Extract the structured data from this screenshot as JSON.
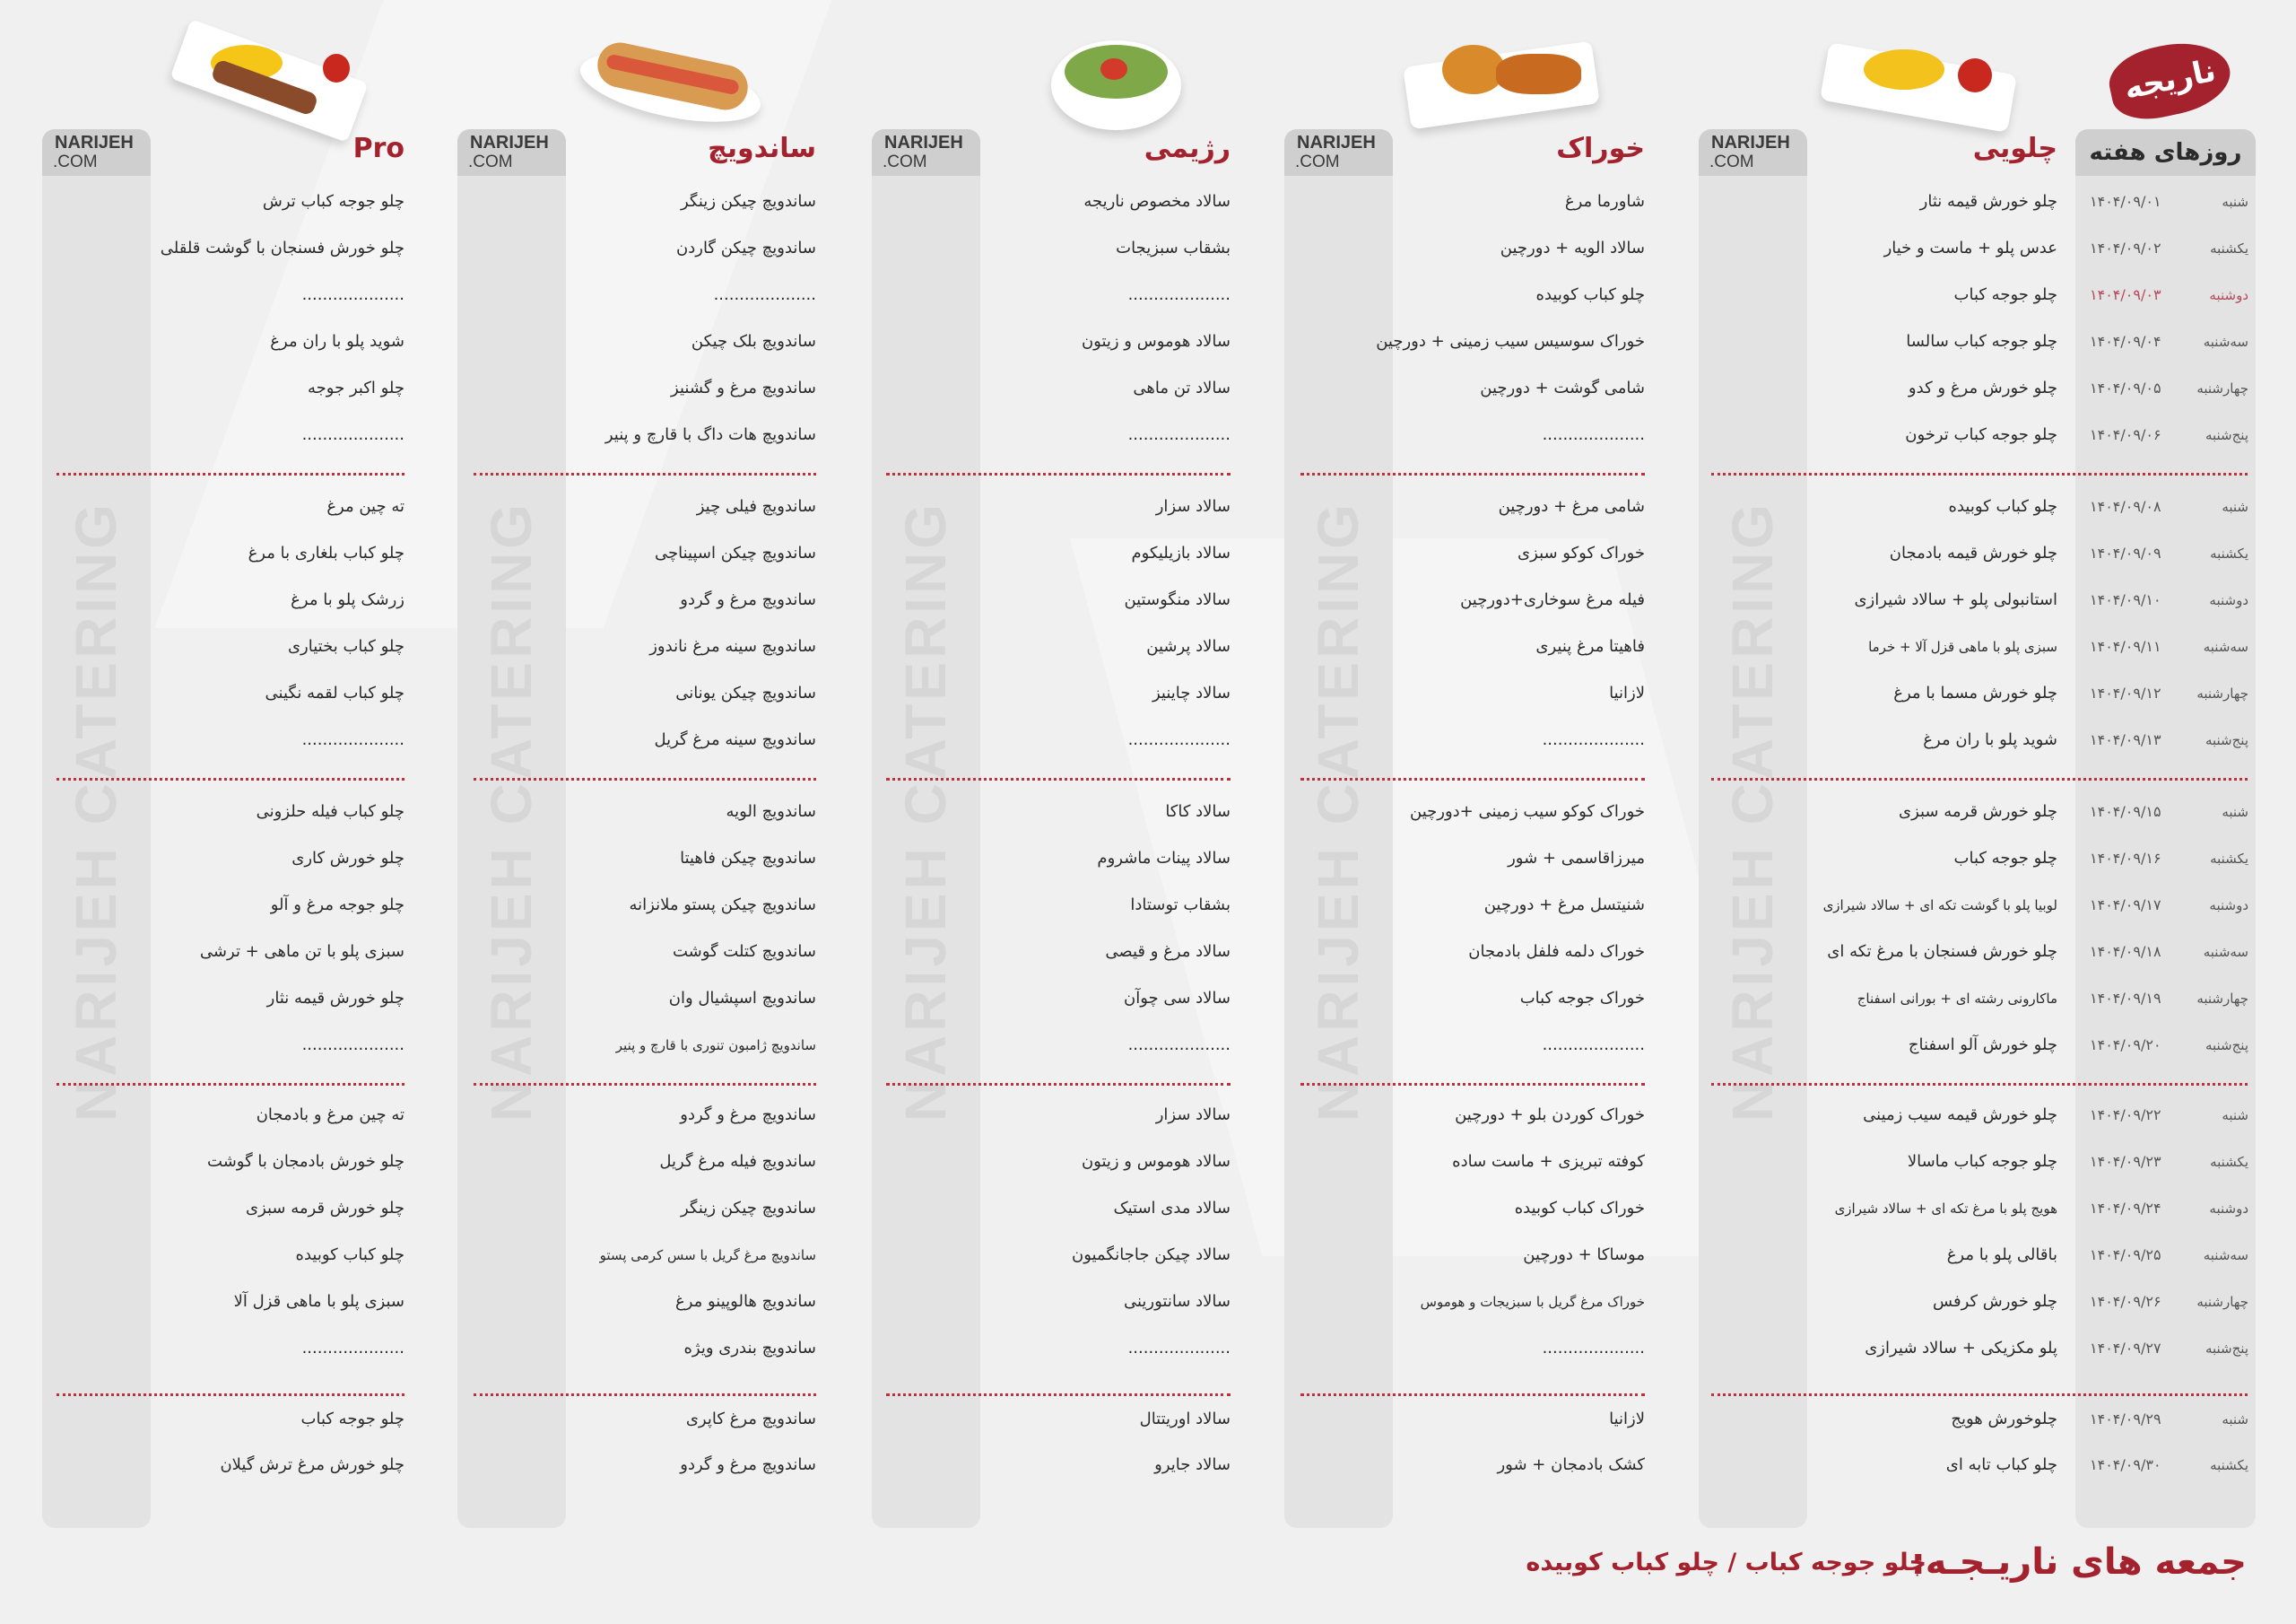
{
  "logo_text": "ناریجه",
  "watermark": "NARIJEH CATERING",
  "brand_box": {
    "line1": "NARIJEH",
    "line2": ".COM"
  },
  "colors": {
    "accent": "#a3222d",
    "separator": "#c0303a",
    "highlight_date": "#b54a5c",
    "panel": "#e3e3e3"
  },
  "days_header": "روزهای هفته",
  "highlighted_day": {
    "week": 0,
    "row": 2
  },
  "weeks": [
    {
      "days": [
        {
          "day": "شنبه",
          "date": "۱۴۰۴/۰۹/۰۱"
        },
        {
          "day": "یکشنبه",
          "date": "۱۴۰۴/۰۹/۰۲"
        },
        {
          "day": "دوشنبه",
          "date": "۱۴۰۴/۰۹/۰۳"
        },
        {
          "day": "سه‌شنبه",
          "date": "۱۴۰۴/۰۹/۰۴"
        },
        {
          "day": "چهارشنبه",
          "date": "۱۴۰۴/۰۹/۰۵"
        },
        {
          "day": "پنج‌شنبه",
          "date": "۱۴۰۴/۰۹/۰۶"
        }
      ]
    },
    {
      "days": [
        {
          "day": "شنبه",
          "date": "۱۴۰۴/۰۹/۰۸"
        },
        {
          "day": "یکشنبه",
          "date": "۱۴۰۴/۰۹/۰۹"
        },
        {
          "day": "دوشنبه",
          "date": "۱۴۰۴/۰۹/۱۰"
        },
        {
          "day": "سه‌شنبه",
          "date": "۱۴۰۴/۰۹/۱۱"
        },
        {
          "day": "چهارشنبه",
          "date": "۱۴۰۴/۰۹/۱۲"
        },
        {
          "day": "پنج‌شنبه",
          "date": "۱۴۰۴/۰۹/۱۳"
        }
      ]
    },
    {
      "days": [
        {
          "day": "شنبه",
          "date": "۱۴۰۴/۰۹/۱۵"
        },
        {
          "day": "یکشنبه",
          "date": "۱۴۰۴/۰۹/۱۶"
        },
        {
          "day": "دوشنبه",
          "date": "۱۴۰۴/۰۹/۱۷"
        },
        {
          "day": "سه‌شنبه",
          "date": "۱۴۰۴/۰۹/۱۸"
        },
        {
          "day": "چهارشنبه",
          "date": "۱۴۰۴/۰۹/۱۹"
        },
        {
          "day": "پنج‌شنبه",
          "date": "۱۴۰۴/۰۹/۲۰"
        }
      ]
    },
    {
      "days": [
        {
          "day": "شنبه",
          "date": "۱۴۰۴/۰۹/۲۲"
        },
        {
          "day": "یکشنبه",
          "date": "۱۴۰۴/۰۹/۲۳"
        },
        {
          "day": "دوشنبه",
          "date": "۱۴۰۴/۰۹/۲۴"
        },
        {
          "day": "سه‌شنبه",
          "date": "۱۴۰۴/۰۹/۲۵"
        },
        {
          "day": "چهارشنبه",
          "date": "۱۴۰۴/۰۹/۲۶"
        },
        {
          "day": "پنج‌شنبه",
          "date": "۱۴۰۴/۰۹/۲۷"
        }
      ]
    },
    {
      "days": [
        {
          "day": "شنبه",
          "date": "۱۴۰۴/۰۹/۲۹"
        },
        {
          "day": "یکشنبه",
          "date": "۱۴۰۴/۰۹/۳۰"
        }
      ]
    }
  ],
  "columns": [
    {
      "title": "چلویی",
      "image": "rice-and-chicken-kebab-plate",
      "weeks": [
        [
          "چلو خورش قیمه نثار",
          "عدس پلو + ماست و خیار",
          "چلو جوجه کباب",
          "چلو جوجه کباب سالسا",
          "چلو خورش مرغ و کدو",
          "چلو جوجه کباب ترخون"
        ],
        [
          "چلو کباب کوبیده",
          "چلو خورش قیمه بادمجان",
          "استانبولی پلو + سالاد شیرازی",
          "سبزی پلو با ماهی قزل آلا + خرما",
          "چلو خورش مسما با مرغ",
          "شوید پلو با ران مرغ"
        ],
        [
          "چلو خورش قرمه سبزی",
          "چلو جوجه کباب",
          "لوبیا پلو با گوشت تکه ای + سالاد شیرازی",
          "چلو خورش فسنجان با مرغ تکه ای",
          "ماکارونی رشته ای + بورانی اسفناج",
          "چلو خورش آلو اسفناج"
        ],
        [
          "چلو خورش قیمه سیب زمینی",
          "چلو جوجه کباب ماسالا",
          "هویج پلو با مرغ تکه ای + سالاد شیرازی",
          "باقالی پلو با مرغ",
          "چلو خورش کرفس",
          "پلو مکزیکی + سالاد شیرازی"
        ],
        [
          "چلوخورش هویج",
          "چلو کباب تابه ای"
        ]
      ]
    },
    {
      "title": "خوراک",
      "image": "fried-chicken-plate",
      "weeks": [
        [
          "شاورما مرغ",
          "سالاد الویه + دورچین",
          "چلو کباب کوبیده",
          "خوراک سوسیس سیب زمینی + دورچین",
          "شامی گوشت + دورچین",
          "...................."
        ],
        [
          "شامی مرغ + دورچین",
          "خوراک کوکو سبزی",
          "فیله مرغ سوخاری+دورچین",
          "فاهیتا مرغ پنیری",
          "لازانیا",
          "...................."
        ],
        [
          "خوراک کوکو سیب زمینی +دورچین",
          "میرزاقاسمی + شور",
          "شنیتسل مرغ + دورچین",
          "خوراک دلمه فلفل بادمجان",
          "خوراک جوجه کباب",
          "...................."
        ],
        [
          "خوراک کوردن بلو + دورچین",
          "کوفته تبریزی + ماست ساده",
          "خوراک کباب کوبیده",
          "موساکا + دورچین",
          "خوراک مرغ گریل با سبزیجات و هوموس",
          "...................."
        ],
        [
          "لازانیا",
          "کشک بادمجان + شور"
        ]
      ]
    },
    {
      "title": "رژیمی",
      "image": "salad-bowl",
      "weeks": [
        [
          "سالاد مخصوص ناریجه",
          "بشقاب سبزیجات",
          "....................",
          "سالاد هوموس و زیتون",
          "سالاد تن ماهی",
          "...................."
        ],
        [
          "سالاد سزار",
          "سالاد بازیلیکوم",
          "سالاد منگوستین",
          "سالاد پرشین",
          "سالاد چاینیز",
          "...................."
        ],
        [
          "سالاد کاکا",
          "سالاد پینات ماشروم",
          "بشقاب توستادا",
          "سالاد مرغ و قیصی",
          "سالاد سی چوآن",
          "...................."
        ],
        [
          "سالاد سزار",
          "سالاد هوموس و زیتون",
          "سالاد مدی استیک",
          "سالاد چیکن جاجانگمیون",
          "سالاد سانتورینی",
          "...................."
        ],
        [
          "سالاد اوریتتال",
          "سالاد جایرو"
        ]
      ]
    },
    {
      "title": "ساندویچ",
      "image": "sandwich",
      "weeks": [
        [
          "ساندویچ چیکن زینگر",
          "ساندویچ چیکن گاردن",
          "....................",
          "ساندویچ بلک چیکن",
          "ساندویچ مرغ و گشنیز",
          "ساندویچ هات داگ با قارچ و پنیر"
        ],
        [
          "ساندویچ فیلی چیز",
          "ساندویچ چیکن اسپیناچی",
          "ساندویچ مرغ و گردو",
          "ساندویچ سینه مرغ ناندوز",
          "ساندویچ چیکن یونانی",
          "ساندویچ سینه مرغ گریل"
        ],
        [
          "ساندویچ الویه",
          "ساندویچ چیکن فاهیتا",
          "ساندویچ چیکن پستو ملانزانه",
          "ساندویچ کتلت گوشت",
          "ساندویچ اسپشیال وان",
          "ساندویچ ژامبون تنوری با قارچ و پنیر"
        ],
        [
          "ساندویچ مرغ و گردو",
          "ساندویچ فیله مرغ گریل",
          "ساندویچ چیکن زینگر",
          "ساندویچ مرغ گریل با سس کرمی پستو",
          "ساندویچ هالوپینو مرغ",
          "ساندویچ بندری ویژه"
        ],
        [
          "ساندویچ مرغ کاپری",
          "ساندویچ مرغ و گردو"
        ]
      ]
    },
    {
      "title": "Pro",
      "image": "kebab-platter",
      "weeks": [
        [
          "چلو جوجه کباب ترش",
          "چلو خورش فسنجان با گوشت قلقلی",
          "....................",
          "شوید پلو با ران مرغ",
          "چلو اکبر جوجه",
          "...................."
        ],
        [
          "ته چین مرغ",
          "چلو کباب بلغاری با مرغ",
          "زرشک پلو با مرغ",
          "چلو کباب بختیاری",
          "چلو کباب لقمه نگینی",
          "...................."
        ],
        [
          "چلو کباب فیله حلزونی",
          "چلو خورش کاری",
          "چلو جوجه مرغ و آلو",
          "سبزی پلو با تن ماهی + ترشی",
          "چلو خورش قیمه نثار",
          "...................."
        ],
        [
          "ته چین مرغ و بادمجان",
          "چلو خورش بادمجان با گوشت",
          "چلو خورش قرمه سبزی",
          "چلو کباب کوبیده",
          "سبزی پلو با ماهی قزل آلا",
          "...................."
        ],
        [
          "چلو جوجه کباب",
          "چلو خورش مرغ ترش گیلان"
        ]
      ]
    }
  ],
  "footer": {
    "label": "جمعه های ناریـجـه:",
    "items": "چلو جوجه کباب / چلو کباب کوبیده"
  }
}
